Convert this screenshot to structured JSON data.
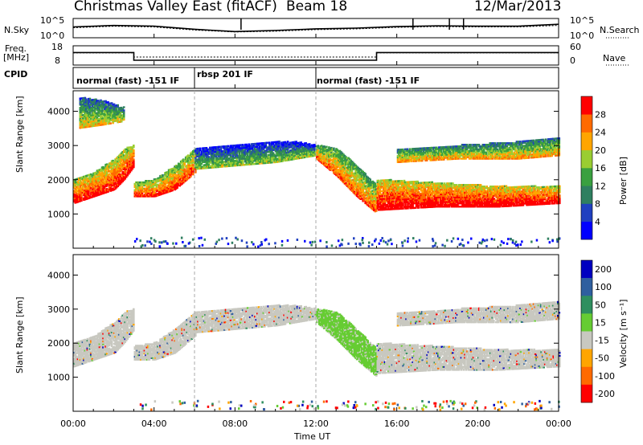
{
  "header": {
    "title": "Christmas Valley East (fitACF)",
    "beam": "Beam 18",
    "date": "12/Mar/2013"
  },
  "summary_panels": {
    "nsky_label": "N.Sky",
    "nsearch_label": "N.Search",
    "nsky_ticks": [
      "10^5",
      "10^0"
    ],
    "nsearch_ticks": [
      "10^5",
      "10^0"
    ],
    "freq_label_line1": "Freq.",
    "freq_label_line2": "[MHz]",
    "freq_ticks": [
      "18",
      "8"
    ],
    "nave_label": "Nave",
    "nave_ticks": [
      "60",
      "0"
    ],
    "cpid_label": "CPID"
  },
  "cpid_segments": [
    {
      "text": "normal (fast) -151 IF",
      "start_hour": 0
    },
    {
      "text": "rbsp 201 IF",
      "start_hour": 6
    },
    {
      "text": "normal (fast) -151 IF",
      "start_hour": 12
    }
  ],
  "chart_data": [
    {
      "type": "line",
      "name": "N.Sky / N.Search",
      "x_unit": "hours UT",
      "x": [
        0,
        2,
        4,
        6,
        8,
        10,
        12,
        14,
        16,
        18,
        20,
        22,
        24
      ],
      "series": [
        {
          "name": "N.Sky",
          "values": [
            2.8,
            3.2,
            3.0,
            2.2,
            1.6,
            1.9,
            2.3,
            2.5,
            2.9,
            3.1,
            3.0,
            3.0,
            3.5
          ]
        },
        {
          "name": "N.Search",
          "values": [
            2.6,
            3.0,
            2.8,
            2.0,
            1.5,
            1.7,
            2.1,
            2.3,
            2.7,
            2.9,
            2.8,
            2.8,
            3.2
          ]
        }
      ],
      "ylim": [
        0,
        5
      ],
      "yscale": "log"
    },
    {
      "type": "line",
      "name": "Freq / Nave",
      "x": [
        0,
        3,
        3,
        15,
        15,
        24
      ],
      "series": [
        {
          "name": "Freq.",
          "values": [
            14.5,
            14.5,
            10.5,
            10.5,
            14.5,
            14.5
          ]
        },
        {
          "name": "Nave",
          "values": [
            38,
            38,
            25,
            25,
            38,
            38
          ]
        }
      ],
      "ylim_freq": [
        8,
        18
      ],
      "ylim_nave": [
        0,
        60
      ]
    },
    {
      "type": "heatmap",
      "name": "power",
      "xlabel": "",
      "ylabel": "Slant Range [km]",
      "xlim": [
        0,
        24
      ],
      "ylim": [
        0,
        4600
      ],
      "yticks": [
        1000,
        2000,
        3000,
        4000
      ],
      "colorbar_label": "Power [dB]",
      "colorbar_ticks": [
        4,
        8,
        12,
        16,
        20,
        24,
        28
      ],
      "colorbar_range": [
        0,
        32
      ],
      "colorbar_colors": [
        "#0000ff",
        "#2040c0",
        "#2f7f60",
        "#3aa040",
        "#9acd32",
        "#ffa500",
        "#ff6a00",
        "#ff0000"
      ],
      "bands": [
        {
          "x": [
            0,
            1,
            2,
            2.5,
            3
          ],
          "lo": [
            1300,
            1500,
            1700,
            2000,
            2400
          ],
          "hi": [
            2000,
            2200,
            2600,
            2900,
            3000
          ],
          "level": 22
        },
        {
          "x": [
            3,
            4,
            5,
            6
          ],
          "lo": [
            1500,
            1500,
            1700,
            2200
          ],
          "hi": [
            1900,
            2000,
            2400,
            2900
          ],
          "level": 20
        },
        {
          "x": [
            6,
            8,
            10,
            11,
            12
          ],
          "lo": [
            2300,
            2400,
            2500,
            2600,
            2700
          ],
          "hi": [
            2900,
            3000,
            3100,
            3100,
            3000
          ],
          "level": 8
        },
        {
          "x": [
            12,
            13,
            14,
            15
          ],
          "lo": [
            2600,
            2100,
            1500,
            1000
          ],
          "hi": [
            3000,
            2900,
            2400,
            1800
          ],
          "level": 18
        },
        {
          "x": [
            15,
            18,
            21,
            24
          ],
          "lo": [
            1100,
            1200,
            1200,
            1300
          ],
          "hi": [
            2000,
            1900,
            1800,
            1800
          ],
          "level": 24
        },
        {
          "x": [
            0.3,
            1.5,
            2.5
          ],
          "lo": [
            3500,
            3600,
            3700
          ],
          "hi": [
            4400,
            4300,
            4100
          ],
          "level": 12
        },
        {
          "x": [
            16,
            19,
            22,
            24
          ],
          "lo": [
            2500,
            2600,
            2600,
            2700
          ],
          "hi": [
            2900,
            3000,
            3100,
            3200
          ],
          "level": 14
        }
      ]
    },
    {
      "type": "heatmap",
      "name": "velocity",
      "xlabel": "Time UT",
      "ylabel": "Slant Range [km]",
      "xlim": [
        0,
        24
      ],
      "ylim": [
        0,
        4600
      ],
      "xticks": [
        "00:00",
        "04:00",
        "08:00",
        "12:00",
        "16:00",
        "20:00",
        "00:00"
      ],
      "yticks": [
        1000,
        2000,
        3000,
        4000
      ],
      "colorbar_label": "Velocity [m s⁻¹]",
      "colorbar_ticks": [
        200,
        100,
        50,
        15,
        -15,
        -50,
        -100,
        -200
      ],
      "colorbar_colors": [
        "#0000c0",
        "#2f5f9f",
        "#2f8f5f",
        "#66cc33",
        "#c8c8c0",
        "#ffa500",
        "#ff6a00",
        "#ff0000"
      ],
      "bands": [
        {
          "x": [
            0,
            1,
            2,
            2.5,
            3
          ],
          "lo": [
            1300,
            1500,
            1700,
            2000,
            2400
          ],
          "hi": [
            2000,
            2200,
            2600,
            2900,
            3000
          ],
          "level": 0
        },
        {
          "x": [
            3,
            4,
            5,
            6
          ],
          "lo": [
            1500,
            1500,
            1700,
            2200
          ],
          "hi": [
            1900,
            2000,
            2400,
            2900
          ],
          "level": 0
        },
        {
          "x": [
            6,
            8,
            10,
            11,
            12
          ],
          "lo": [
            2300,
            2400,
            2500,
            2600,
            2700
          ],
          "hi": [
            2900,
            3000,
            3100,
            3100,
            3000
          ],
          "level": 0
        },
        {
          "x": [
            12,
            13,
            14,
            15
          ],
          "lo": [
            2600,
            2100,
            1500,
            1000
          ],
          "hi": [
            3000,
            2900,
            2400,
            1800
          ],
          "level": 30
        },
        {
          "x": [
            15,
            18,
            21,
            24
          ],
          "lo": [
            1100,
            1200,
            1200,
            1300
          ],
          "hi": [
            2000,
            1900,
            1800,
            1800
          ],
          "level": 0
        },
        {
          "x": [
            16,
            19,
            22,
            24
          ],
          "lo": [
            2500,
            2600,
            2600,
            2700
          ],
          "hi": [
            2900,
            3000,
            3100,
            3200
          ],
          "level": 0
        }
      ]
    }
  ]
}
